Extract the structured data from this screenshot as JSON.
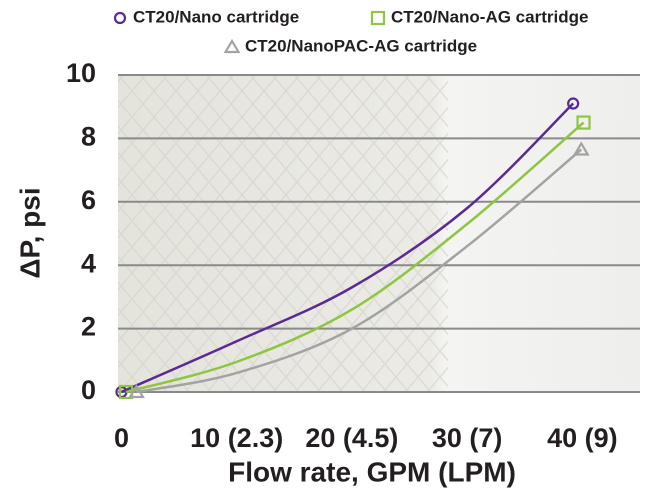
{
  "chart_data": {
    "type": "line",
    "x_label": "Flow rate, GPM (LPM)",
    "y_label": "ΔP, psi",
    "xlim": [
      -0.3,
      45
    ],
    "ylim": [
      0,
      10
    ],
    "xticks": [
      0,
      {
        "value": 10,
        "label": "10 (2.3)"
      },
      {
        "value": 20,
        "label": "20 (4.5)"
      },
      {
        "value": 30,
        "label": "30 (7)"
      },
      {
        "value": 40,
        "label": "40 (9)"
      }
    ],
    "yticks": [
      0,
      2,
      4,
      6,
      8,
      10
    ],
    "grid": true,
    "legend": "top",
    "series": [
      {
        "name": "CT20/Nano cartridge",
        "color": "#5b2a91",
        "marker": "circle",
        "x": [
          0,
          10,
          20,
          30,
          39.2
        ],
        "values": [
          0,
          1.6,
          3.3,
          5.8,
          9.1
        ]
      },
      {
        "name": "CT20/Nano-AG cartridge",
        "color": "#8dc63f",
        "marker": "square",
        "x": [
          0.4,
          10,
          20,
          30,
          40.1
        ],
        "values": [
          0,
          0.95,
          2.6,
          5.3,
          8.5
        ]
      },
      {
        "name": "CT20/NanoPAC-AG cartridge",
        "color": "#a3a3a3",
        "marker": "triangle",
        "x": [
          1.3,
          10,
          20,
          30,
          39.9
        ],
        "values": [
          0,
          0.6,
          2.0,
          4.6,
          7.65
        ]
      }
    ]
  }
}
